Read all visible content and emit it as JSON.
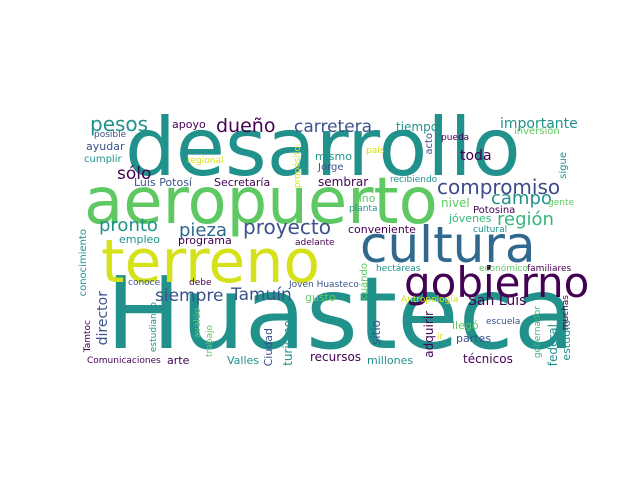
{
  "word_cloud": {
    "palette": {
      "dark_purple": "#440154",
      "indigo": "#3b528b",
      "teal": "#21918c",
      "green": "#5ec962",
      "yellow": "#cfe11c",
      "light_green": "#7ad151"
    },
    "words": [
      {
        "text": "Huasteca",
        "color": "#21918c"
      },
      {
        "text": "desarrollo",
        "color": "#21918c"
      },
      {
        "text": "aeropuerto",
        "color": "#5ec962"
      },
      {
        "text": "terreno",
        "color": "#d5e21a"
      },
      {
        "text": "cultura",
        "color": "#31688e"
      },
      {
        "text": "gobierno",
        "color": "#440154"
      },
      {
        "text": "compromiso",
        "color": "#3e4a89"
      },
      {
        "text": "proyecto",
        "color": "#3b528b"
      },
      {
        "text": "pieza",
        "color": "#31688e"
      },
      {
        "text": "carretera",
        "color": "#3b528b"
      },
      {
        "text": "dueño",
        "color": "#440154"
      },
      {
        "text": "pesos",
        "color": "#21918c"
      },
      {
        "text": "campo",
        "color": "#21918c"
      },
      {
        "text": "región",
        "color": "#35b779"
      },
      {
        "text": "sólo",
        "color": "#440154"
      },
      {
        "text": "pronto",
        "color": "#21918c"
      },
      {
        "text": "siempre",
        "color": "#3b528b"
      },
      {
        "text": "Tamuín",
        "color": "#3b528b"
      },
      {
        "text": "San Luis",
        "color": "#440154"
      },
      {
        "text": "importante",
        "color": "#21918c"
      },
      {
        "text": "inversión",
        "color": "#5ec962"
      },
      {
        "text": "tiempo",
        "color": "#21918c"
      },
      {
        "text": "toda",
        "color": "#440154"
      },
      {
        "text": "apoyo",
        "color": "#440154"
      },
      {
        "text": "posible",
        "color": "#3b528b"
      },
      {
        "text": "ayudar",
        "color": "#3b528b"
      },
      {
        "text": "cumplir",
        "color": "#21918c"
      },
      {
        "text": "regional",
        "color": "#d5e21a"
      },
      {
        "text": "mismo",
        "color": "#21918c"
      },
      {
        "text": "país",
        "color": "#d5e21a"
      },
      {
        "text": "pueda",
        "color": "#440154"
      },
      {
        "text": "Luis Potosí",
        "color": "#3b528b"
      },
      {
        "text": "Secretaría",
        "color": "#440154"
      },
      {
        "text": "Jorge",
        "color": "#3b528b"
      },
      {
        "text": "sembrar",
        "color": "#440154"
      },
      {
        "text": "recibiendo",
        "color": "#21918c"
      },
      {
        "text": "sino",
        "color": "#5ec962"
      },
      {
        "text": "planta",
        "color": "#21918c"
      },
      {
        "text": "nivel",
        "color": "#5ec962"
      },
      {
        "text": "Potosina",
        "color": "#440154"
      },
      {
        "text": "jóvenes",
        "color": "#35b779"
      },
      {
        "text": "gente",
        "color": "#5ec962"
      },
      {
        "text": "empleo",
        "color": "#21918c"
      },
      {
        "text": "programa",
        "color": "#440154"
      },
      {
        "text": "adelante",
        "color": "#440154"
      },
      {
        "text": "conveniente",
        "color": "#440154"
      },
      {
        "text": "cultural",
        "color": "#21918c"
      },
      {
        "text": "conoce",
        "color": "#3b528b"
      },
      {
        "text": "debe",
        "color": "#440154"
      },
      {
        "text": "gusto",
        "color": "#5ec962"
      },
      {
        "text": "hectáreas",
        "color": "#21918c"
      },
      {
        "text": "económico",
        "color": "#5ec962"
      },
      {
        "text": "familiares",
        "color": "#440154"
      },
      {
        "text": "Joven Huasteco",
        "color": "#3b528b"
      },
      {
        "text": "Antropología",
        "color": "#d5e21a"
      },
      {
        "text": "escuela",
        "color": "#3b528b"
      },
      {
        "text": "llegó",
        "color": "#5ec962"
      },
      {
        "text": "partes",
        "color": "#3b528b"
      },
      {
        "text": "ir",
        "color": "#d5e21a"
      },
      {
        "text": "arte",
        "color": "#440154"
      },
      {
        "text": "Valles",
        "color": "#21918c"
      },
      {
        "text": "recursos",
        "color": "#440154"
      },
      {
        "text": "millones",
        "color": "#21918c"
      },
      {
        "text": "técnicos",
        "color": "#440154"
      },
      {
        "text": "Comunicaciones",
        "color": "#440154"
      },
      {
        "text": "estudio",
        "color": "#21918c"
      },
      {
        "text": "propósito",
        "color": "#d5e21a"
      },
      {
        "text": "acto",
        "color": "#3b528b"
      },
      {
        "text": "sigue",
        "color": "#21918c"
      },
      {
        "text": "conocimiento",
        "color": "#21918c"
      },
      {
        "text": "director",
        "color": "#3b528b"
      },
      {
        "text": "Tamtoc",
        "color": "#440154"
      },
      {
        "text": "estudiando",
        "color": "#21918c"
      },
      {
        "text": "avalúo",
        "color": "#5ec962"
      },
      {
        "text": "trabajo",
        "color": "#5ec962"
      },
      {
        "text": "Ciudad",
        "color": "#3b528b"
      },
      {
        "text": "turismo",
        "color": "#21918c"
      },
      {
        "text": "cuándo",
        "color": "#5ec962"
      },
      {
        "text": "sitio",
        "color": "#3b528b"
      },
      {
        "text": "adquirir",
        "color": "#440154"
      },
      {
        "text": "federal",
        "color": "#21918c"
      },
      {
        "text": "gobernador",
        "color": "#35b779"
      },
      {
        "text": "muchas",
        "color": "#440154"
      }
    ]
  }
}
